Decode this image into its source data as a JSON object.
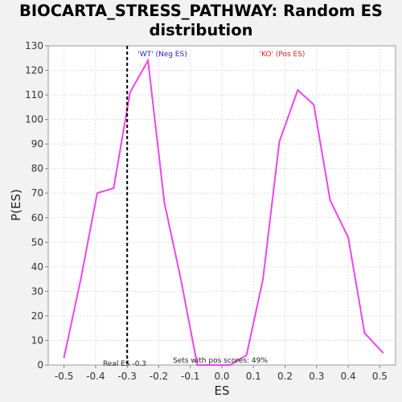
{
  "chart_data": {
    "type": "line",
    "title_line1": "BIOCARTA_STRESS_PATHWAY: Random ES",
    "title_line2": "distribution",
    "xlabel": "ES",
    "ylabel": "P(ES)",
    "xlim": [
      -0.55,
      0.55
    ],
    "ylim": [
      0,
      130
    ],
    "xticks": [
      -0.5,
      -0.4,
      -0.3,
      -0.2,
      -0.1,
      0.0,
      0.1,
      0.2,
      0.3,
      0.4,
      0.5
    ],
    "xtick_labels": [
      "-0.5",
      "-0.4",
      "-0.3",
      "-0.2",
      "-0.1",
      "0.0",
      "0.1",
      "0.2",
      "0.3",
      "0.4",
      "0.5"
    ],
    "yticks": [
      0,
      10,
      20,
      30,
      40,
      50,
      60,
      70,
      80,
      90,
      100,
      110,
      120,
      130
    ],
    "ytick_labels": [
      "0",
      "10",
      "20",
      "30",
      "40",
      "50",
      "60",
      "70",
      "80",
      "90",
      "100",
      "110",
      "120",
      "130"
    ],
    "grid": true,
    "series": [
      {
        "color": "#ee44ee",
        "x": [
          -0.5,
          -0.447,
          -0.395,
          -0.343,
          -0.291,
          -0.234,
          -0.182,
          -0.13,
          -0.078,
          -0.026,
          0.026,
          0.078,
          0.13,
          0.182,
          0.24,
          0.291,
          0.343,
          0.4,
          0.452,
          0.51
        ],
        "y": [
          3,
          35,
          70,
          72,
          111,
          124,
          66,
          35,
          0,
          0,
          0,
          4,
          35,
          91,
          112,
          106,
          67,
          52,
          13,
          5
        ]
      }
    ],
    "real_es": {
      "x": -0.3,
      "color": "#000000",
      "label": "Real ES -0.3"
    },
    "annotations": {
      "neg_label": "'WT' (Neg ES)",
      "neg_color": "#2222cc",
      "pos_label": "'KO' (Pos ES)",
      "pos_color": "#dd2222",
      "pos_scores": "Sets with pos scores: 49%"
    }
  }
}
